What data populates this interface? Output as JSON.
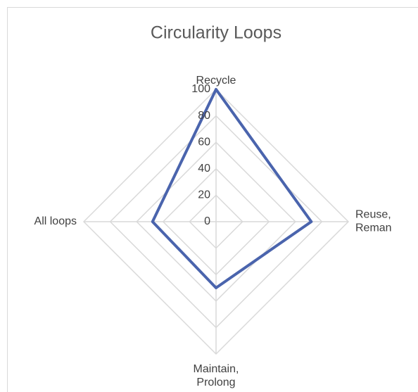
{
  "chart_data": {
    "type": "radar",
    "title": "Circularity Loops",
    "categories": [
      "Recycle",
      "Reuse,\nReman",
      "Maintain,\nProlong",
      "All loops"
    ],
    "values": [
      100,
      72,
      50,
      48
    ],
    "color": "#4a64ad",
    "rlim": [
      0,
      100
    ],
    "rticks": [
      0,
      20,
      40,
      60,
      80,
      100
    ],
    "grid": true
  }
}
